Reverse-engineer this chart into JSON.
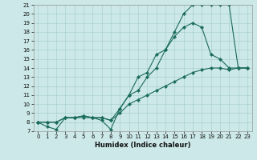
{
  "xlabel": "Humidex (Indice chaleur)",
  "bg_color": "#cce8e8",
  "grid_color": "#aad0d0",
  "line_color": "#1a6b5a",
  "xlim": [
    -0.5,
    23.5
  ],
  "ylim": [
    7,
    21
  ],
  "yticks": [
    7,
    8,
    9,
    10,
    11,
    12,
    13,
    14,
    15,
    16,
    17,
    18,
    19,
    20,
    21
  ],
  "xticks": [
    0,
    1,
    2,
    3,
    4,
    5,
    6,
    7,
    8,
    9,
    10,
    11,
    12,
    13,
    14,
    15,
    16,
    17,
    18,
    19,
    20,
    21,
    22,
    23
  ],
  "line1_x": [
    0,
    1,
    2,
    3,
    4,
    5,
    6,
    7,
    8,
    9,
    10,
    11,
    12,
    13,
    14,
    15,
    16,
    17,
    18,
    19,
    20,
    21,
    22,
    23
  ],
  "line1_y": [
    8.0,
    7.5,
    7.2,
    8.5,
    8.5,
    8.5,
    8.5,
    8.2,
    7.2,
    9.5,
    11.0,
    13.0,
    13.5,
    15.5,
    16.0,
    18.0,
    20.0,
    21.0,
    21.0,
    21.0,
    21.0,
    21.0,
    14.0,
    14.0
  ],
  "line2_x": [
    0,
    1,
    2,
    3,
    4,
    5,
    6,
    7,
    8,
    9,
    10,
    11,
    12,
    13,
    14,
    15,
    16,
    17,
    18,
    19,
    20,
    21,
    22,
    23
  ],
  "line2_y": [
    8.0,
    8.0,
    8.0,
    8.5,
    8.5,
    8.7,
    8.5,
    8.5,
    8.2,
    9.5,
    11.0,
    11.5,
    13.0,
    14.0,
    16.0,
    17.5,
    18.5,
    19.0,
    18.5,
    15.5,
    15.0,
    14.0,
    14.0,
    14.0
  ],
  "line3_x": [
    0,
    1,
    2,
    3,
    4,
    5,
    6,
    7,
    8,
    9,
    10,
    11,
    12,
    13,
    14,
    15,
    16,
    17,
    18,
    19,
    20,
    21,
    22,
    23
  ],
  "line3_y": [
    8.0,
    8.0,
    8.0,
    8.5,
    8.5,
    8.7,
    8.5,
    8.5,
    8.2,
    9.0,
    10.0,
    10.5,
    11.0,
    11.5,
    12.0,
    12.5,
    13.0,
    13.5,
    13.8,
    14.0,
    14.0,
    13.8,
    14.0,
    14.0
  ],
  "xlabel_fontsize": 6,
  "tick_fontsize": 5,
  "linewidth": 0.8,
  "markersize": 2.2
}
